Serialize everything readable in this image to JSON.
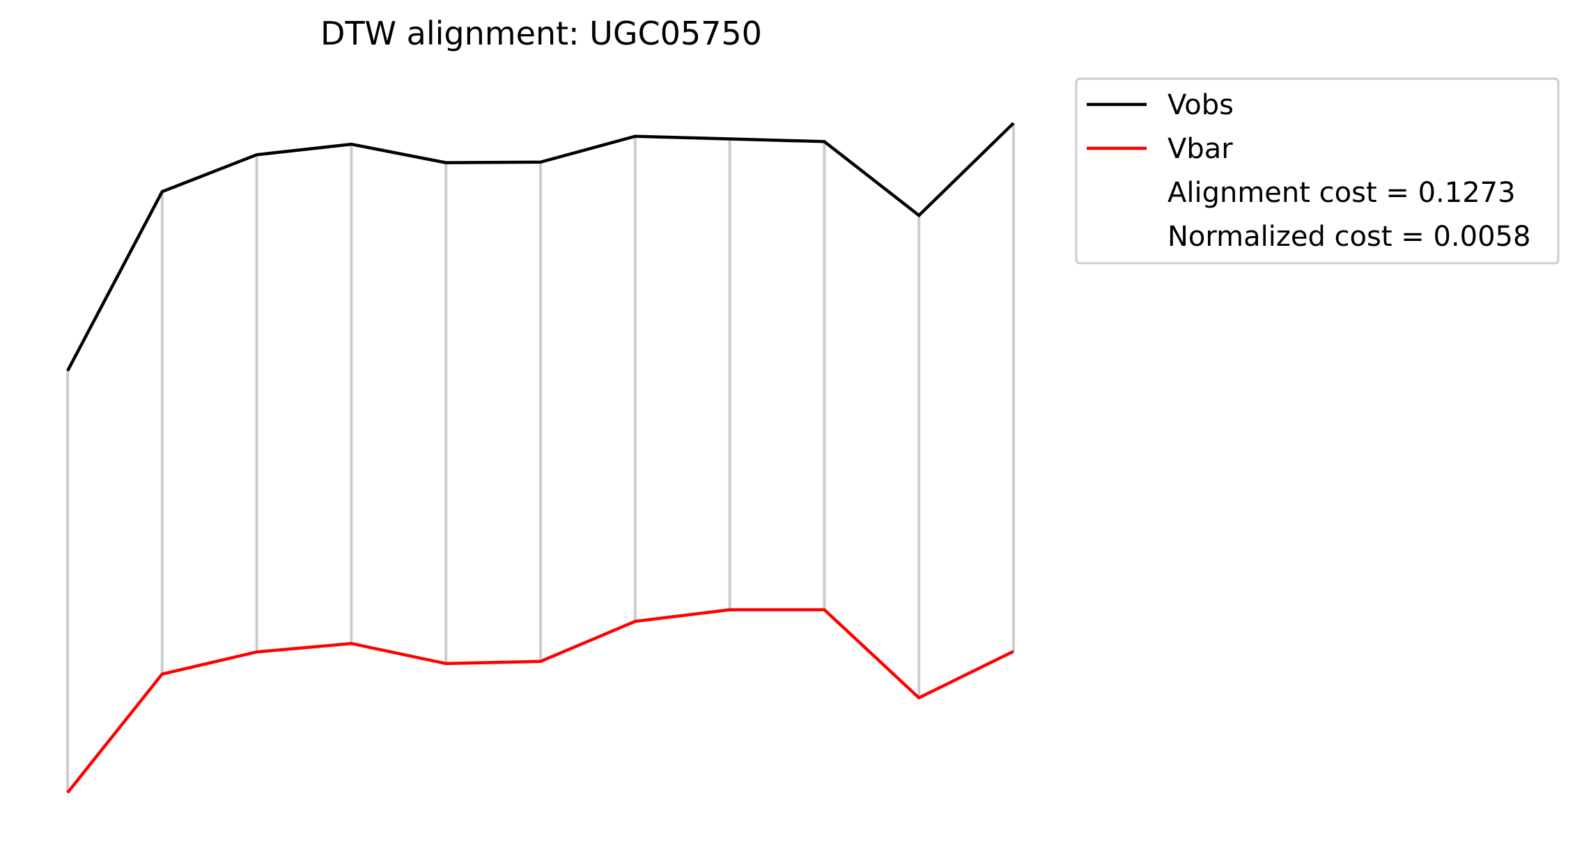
{
  "chart_data": {
    "type": "line",
    "title": "DTW alignment: UGC05750",
    "xlabel": "",
    "ylabel": "",
    "grid": false,
    "axes_visible": false,
    "legend_position": "outside-upper-right",
    "x": [
      0,
      1,
      2,
      3,
      4,
      5,
      6,
      7,
      8,
      9,
      10
    ],
    "series": [
      {
        "name": "Vobs",
        "color": "#000000",
        "values": [
          0.64,
          0.98,
          1.05,
          1.07,
          1.035,
          1.036,
          1.085,
          1.08,
          1.075,
          0.935,
          1.11
        ]
      },
      {
        "name": "Vbar",
        "color": "#ff0000",
        "values": [
          -0.16,
          0.065,
          0.107,
          0.123,
          0.085,
          0.089,
          0.165,
          0.187,
          0.187,
          0.02,
          0.108
        ]
      }
    ],
    "alignment": {
      "color": "#cccccc",
      "pairs": [
        [
          0,
          0
        ],
        [
          1,
          1
        ],
        [
          2,
          2
        ],
        [
          3,
          3
        ],
        [
          4,
          4
        ],
        [
          5,
          5
        ],
        [
          6,
          6
        ],
        [
          7,
          7
        ],
        [
          8,
          8
        ],
        [
          9,
          9
        ],
        [
          10,
          10
        ]
      ]
    },
    "legend": {
      "entries": [
        {
          "label": "Vobs",
          "color": "#000000",
          "has_line": true
        },
        {
          "label": "Vbar",
          "color": "#ff0000",
          "has_line": true
        },
        {
          "label": "Alignment cost = 0.1273",
          "has_line": false
        },
        {
          "label": "Normalized cost = 0.0058",
          "has_line": false
        }
      ]
    },
    "ylim": [
      -0.215,
      1.185
    ]
  }
}
